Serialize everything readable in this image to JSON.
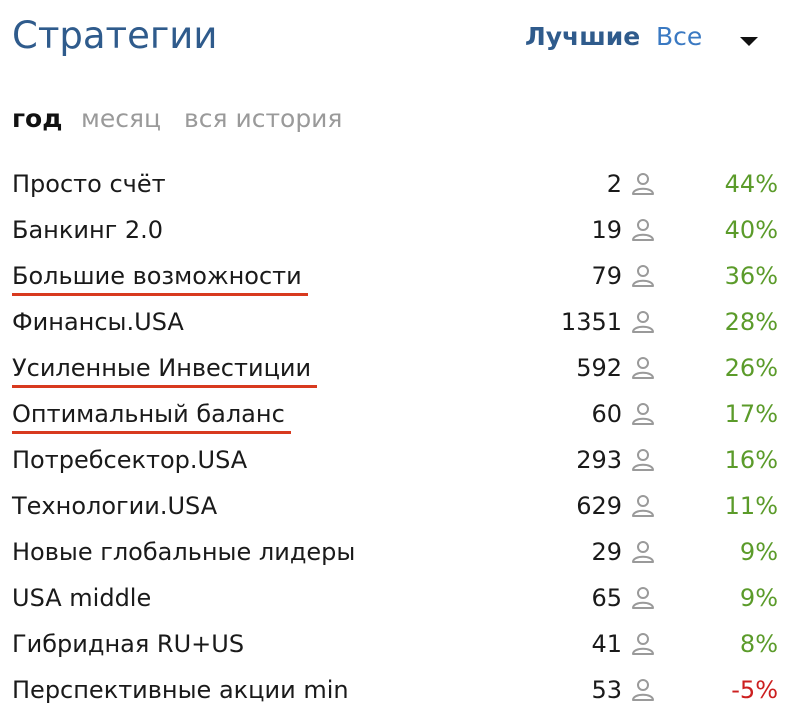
{
  "header": {
    "title": "Стратегии",
    "filter_best": "Лучшие",
    "filter_all": "Все"
  },
  "periods": {
    "year": "год",
    "month": "месяц",
    "all_history": "вся история",
    "selected": "год"
  },
  "colors": {
    "title": "#2f5b8c",
    "link": "#3a79c2",
    "positive": "#5b9b2a",
    "negative": "#cc1f1f",
    "highlight_underline": "#d83a1f"
  },
  "icons": {
    "subscribers": "user-icon",
    "dropdown": "chevron-down-icon"
  },
  "strategies": [
    {
      "name": "Просто счёт",
      "subscribers": "2",
      "return": "44%",
      "trend": "up",
      "underlined": false
    },
    {
      "name": "Банкинг 2.0",
      "subscribers": "19",
      "return": "40%",
      "trend": "up",
      "underlined": false
    },
    {
      "name": "Большие возможности",
      "subscribers": "79",
      "return": "36%",
      "trend": "up",
      "underlined": true
    },
    {
      "name": "Финансы.USA",
      "subscribers": "1351",
      "return": "28%",
      "trend": "up",
      "underlined": false
    },
    {
      "name": "Усиленные Инвестиции",
      "subscribers": "592",
      "return": "26%",
      "trend": "up",
      "underlined": true
    },
    {
      "name": "Оптимальный баланс",
      "subscribers": "60",
      "return": "17%",
      "trend": "up",
      "underlined": true
    },
    {
      "name": "Потребсектор.USA",
      "subscribers": "293",
      "return": "16%",
      "trend": "up",
      "underlined": false
    },
    {
      "name": "Технологии.USA",
      "subscribers": "629",
      "return": "11%",
      "trend": "up",
      "underlined": false
    },
    {
      "name": "Новые глобальные лидеры",
      "subscribers": "29",
      "return": "9%",
      "trend": "up",
      "underlined": false
    },
    {
      "name": "USA middle",
      "subscribers": "65",
      "return": "9%",
      "trend": "up",
      "underlined": false
    },
    {
      "name": "Гибридная RU+US",
      "subscribers": "41",
      "return": "8%",
      "trend": "up",
      "underlined": false
    },
    {
      "name": "Перспективные акции min",
      "subscribers": "53",
      "return": "-5%",
      "trend": "down",
      "underlined": false
    }
  ]
}
